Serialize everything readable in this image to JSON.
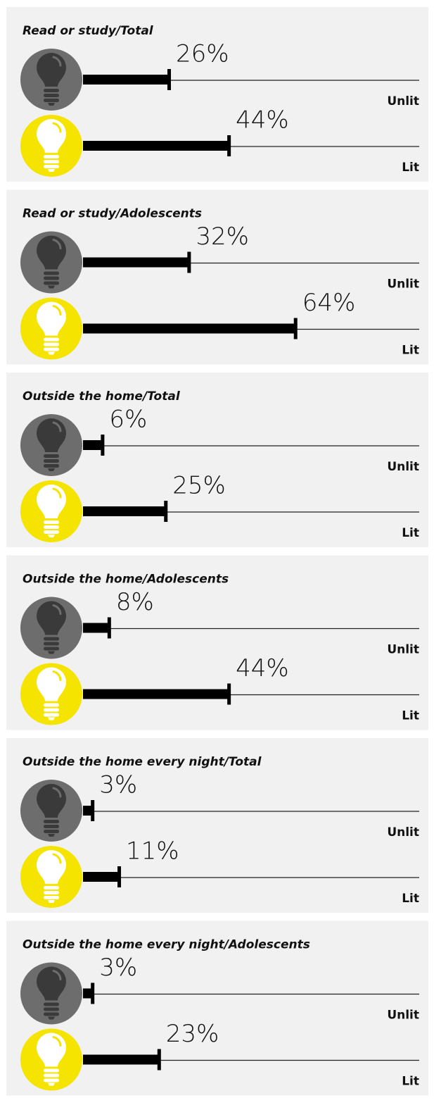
{
  "chart_data": [
    {
      "type": "bar",
      "title": "Read or study/Total",
      "categories": [
        "Unlit",
        "Lit"
      ],
      "values": [
        26,
        44
      ],
      "value_labels": [
        "26%",
        "44%"
      ],
      "xlim": [
        0,
        100
      ],
      "color": "#000000",
      "icon_colors": [
        "#6d6d6d",
        "#f5e400"
      ]
    },
    {
      "type": "bar",
      "title": "Read or study/Adolescents",
      "categories": [
        "Unlit",
        "Lit"
      ],
      "values": [
        32,
        64
      ],
      "value_labels": [
        "32%",
        "64%"
      ],
      "xlim": [
        0,
        100
      ],
      "color": "#000000",
      "icon_colors": [
        "#6d6d6d",
        "#f5e400"
      ]
    },
    {
      "type": "bar",
      "title": "Outside the home/Total",
      "categories": [
        "Unlit",
        "Lit"
      ],
      "values": [
        6,
        25
      ],
      "value_labels": [
        "6%",
        "25%"
      ],
      "xlim": [
        0,
        100
      ],
      "color": "#000000",
      "icon_colors": [
        "#6d6d6d",
        "#f5e400"
      ]
    },
    {
      "type": "bar",
      "title": "Outside the home/Adolescents",
      "categories": [
        "Unlit",
        "Lit"
      ],
      "values": [
        8,
        44
      ],
      "value_labels": [
        "8%",
        "44%"
      ],
      "xlim": [
        0,
        100
      ],
      "color": "#000000",
      "icon_colors": [
        "#6d6d6d",
        "#f5e400"
      ]
    },
    {
      "type": "bar",
      "title": "Outside the home every night/Total",
      "categories": [
        "Unlit",
        "Lit"
      ],
      "values": [
        3,
        11
      ],
      "value_labels": [
        "3%",
        "11%"
      ],
      "xlim": [
        0,
        100
      ],
      "color": "#000000",
      "icon_colors": [
        "#6d6d6d",
        "#f5e400"
      ]
    },
    {
      "type": "bar",
      "title": "Outside the home every night/Adolescents",
      "categories": [
        "Unlit",
        "Lit"
      ],
      "values": [
        3,
        23
      ],
      "value_labels": [
        "3%",
        "23%"
      ],
      "xlim": [
        0,
        100
      ],
      "color": "#000000",
      "icon_colors": [
        "#6d6d6d",
        "#f5e400"
      ]
    }
  ]
}
